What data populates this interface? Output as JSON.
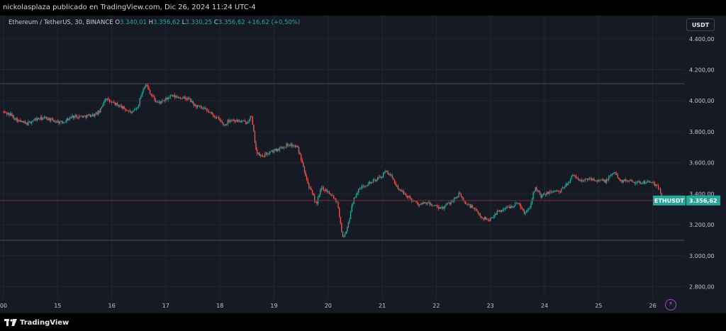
{
  "header": {
    "caption": "nickolasplaza publicado en TradingView.com, Dic 26, 2024 11:24 UTC-4"
  },
  "legend": {
    "symbol": "Ethereum / TetherUS, 30, BINANCE",
    "o_label": "O",
    "o_value": "3.340,01",
    "h_label": "H",
    "h_value": "3.356,62",
    "l_label": "L",
    "l_value": "3.330,25",
    "c_label": "C",
    "c_value": "3.356,62",
    "change": "+16,62 (+0,50%)"
  },
  "toolbar": {
    "currency_label": "USDT"
  },
  "footer": {
    "brand": "TradingView"
  },
  "colors": {
    "up": "#26a69a",
    "down": "#ef5350",
    "background": "#161a25",
    "grid": "#232632",
    "price_line": "#7a2f35",
    "hline": "#4b4e59"
  },
  "chart_data": {
    "type": "candlestick",
    "symbol": "ETHUSDT",
    "interval": "30",
    "exchange": "BINANCE",
    "x_tick_labels": [
      "00",
      "15",
      "16",
      "17",
      "18",
      "19",
      "20",
      "21",
      "22",
      "23",
      "24",
      "25",
      "26"
    ],
    "y_tick_labels": [
      "4.400,00",
      "4.200,00",
      "4.000,00",
      "3.800,00",
      "3.600,00",
      "3.400,00",
      "3.200,00",
      "3.000,00",
      "2.800,00"
    ],
    "y_ticks": [
      4400,
      4200,
      4000,
      3800,
      3600,
      3400,
      3200,
      3000,
      2800
    ],
    "ylim": [
      2720,
      4550
    ],
    "x_range_days": [
      14.0,
      26.7
    ],
    "horizontal_lines": [
      4110,
      3100
    ],
    "last_price": 3356.62,
    "last_price_label": "3.356,62",
    "symbol_tag": "ETHUSDT",
    "grid": true,
    "price_path": [
      [
        14.0,
        3930
      ],
      [
        14.15,
        3910
      ],
      [
        14.3,
        3870
      ],
      [
        14.45,
        3850
      ],
      [
        14.6,
        3880
      ],
      [
        14.8,
        3890
      ],
      [
        14.95,
        3870
      ],
      [
        15.1,
        3860
      ],
      [
        15.3,
        3900
      ],
      [
        15.5,
        3900
      ],
      [
        15.7,
        3910
      ],
      [
        15.8,
        3930
      ],
      [
        15.9,
        4020
      ],
      [
        16.0,
        3990
      ],
      [
        16.15,
        3970
      ],
      [
        16.3,
        3940
      ],
      [
        16.4,
        3920
      ],
      [
        16.5,
        3960
      ],
      [
        16.6,
        4080
      ],
      [
        16.65,
        4110
      ],
      [
        16.75,
        4040
      ],
      [
        16.85,
        3990
      ],
      [
        16.95,
        3990
      ],
      [
        17.1,
        4030
      ],
      [
        17.3,
        4020
      ],
      [
        17.45,
        4010
      ],
      [
        17.55,
        3970
      ],
      [
        17.7,
        3950
      ],
      [
        17.85,
        3920
      ],
      [
        18.0,
        3880
      ],
      [
        18.1,
        3840
      ],
      [
        18.2,
        3880
      ],
      [
        18.35,
        3870
      ],
      [
        18.5,
        3860
      ],
      [
        18.6,
        3900
      ],
      [
        18.65,
        3780
      ],
      [
        18.7,
        3660
      ],
      [
        18.8,
        3640
      ],
      [
        18.9,
        3660
      ],
      [
        19.1,
        3690
      ],
      [
        19.3,
        3720
      ],
      [
        19.45,
        3700
      ],
      [
        19.55,
        3600
      ],
      [
        19.65,
        3460
      ],
      [
        19.75,
        3380
      ],
      [
        19.8,
        3330
      ],
      [
        19.9,
        3440
      ],
      [
        20.0,
        3420
      ],
      [
        20.1,
        3390
      ],
      [
        20.2,
        3340
      ],
      [
        20.25,
        3200
      ],
      [
        20.3,
        3110
      ],
      [
        20.4,
        3210
      ],
      [
        20.45,
        3320
      ],
      [
        20.55,
        3410
      ],
      [
        20.7,
        3460
      ],
      [
        20.85,
        3480
      ],
      [
        21.0,
        3510
      ],
      [
        21.1,
        3550
      ],
      [
        21.2,
        3500
      ],
      [
        21.35,
        3420
      ],
      [
        21.5,
        3380
      ],
      [
        21.7,
        3330
      ],
      [
        21.85,
        3340
      ],
      [
        22.0,
        3320
      ],
      [
        22.1,
        3300
      ],
      [
        22.3,
        3350
      ],
      [
        22.45,
        3400
      ],
      [
        22.55,
        3340
      ],
      [
        22.7,
        3310
      ],
      [
        22.85,
        3250
      ],
      [
        23.0,
        3230
      ],
      [
        23.1,
        3270
      ],
      [
        23.25,
        3300
      ],
      [
        23.4,
        3320
      ],
      [
        23.55,
        3340
      ],
      [
        23.65,
        3270
      ],
      [
        23.75,
        3320
      ],
      [
        23.85,
        3450
      ],
      [
        23.95,
        3380
      ],
      [
        24.05,
        3400
      ],
      [
        24.2,
        3420
      ],
      [
        24.3,
        3410
      ],
      [
        24.45,
        3470
      ],
      [
        24.55,
        3520
      ],
      [
        24.7,
        3480
      ],
      [
        24.85,
        3500
      ],
      [
        25.0,
        3490
      ],
      [
        25.15,
        3480
      ],
      [
        25.3,
        3540
      ],
      [
        25.45,
        3480
      ],
      [
        25.6,
        3490
      ],
      [
        25.75,
        3470
      ],
      [
        25.95,
        3480
      ],
      [
        26.05,
        3460
      ],
      [
        26.15,
        3430
      ],
      [
        26.2,
        3357
      ]
    ]
  }
}
